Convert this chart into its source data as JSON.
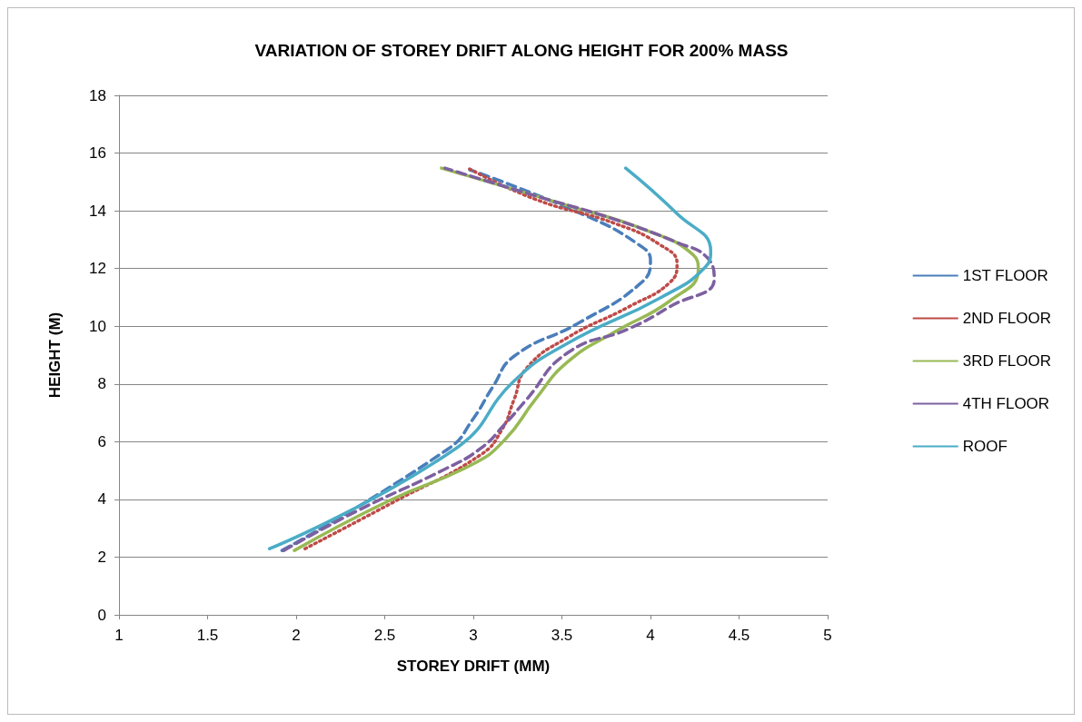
{
  "chart_data": {
    "type": "line",
    "title": "VARIATION OF STOREY DRIFT ALONG HEIGHT FOR 200% MASS",
    "xlabel": "STOREY DRIFT (MM)",
    "ylabel": "HEIGHT (M)",
    "xlim": [
      1,
      5
    ],
    "xticks": [
      1,
      1.5,
      2,
      2.5,
      3,
      3.5,
      4,
      4.5,
      5
    ],
    "ylim": [
      0,
      18
    ],
    "yticks": [
      0,
      2,
      4,
      6,
      8,
      10,
      12,
      14,
      16,
      18
    ],
    "grid": "y",
    "legend": "right",
    "marker": "none",
    "series": [
      {
        "name": "1ST FLOOR",
        "color": "#4a7ebb",
        "line_style": "dashed",
        "x": [
          1.92,
          2.86,
          3.0,
          3.11,
          3.23,
          3.6,
          3.95,
          4.0,
          3.94,
          3.62,
          2.98
        ],
        "values": [
          2.23,
          5.76,
          6.8,
          7.9,
          8.96,
          10.13,
          11.52,
          12.27,
          12.8,
          13.87,
          15.42
        ]
      },
      {
        "name": "2ND FLOOR",
        "color": "#be4b48",
        "line_style": "dotted",
        "x": [
          2.05,
          2.56,
          3.04,
          3.16,
          3.23,
          3.3,
          3.53,
          3.88,
          4.11,
          4.15,
          4.06,
          3.8,
          3.35,
          2.97
        ],
        "values": [
          2.29,
          3.94,
          5.54,
          6.4,
          7.46,
          8.54,
          9.6,
          10.68,
          11.52,
          12.17,
          12.8,
          13.56,
          14.4,
          15.48
        ]
      },
      {
        "name": "3RD FLOOR",
        "color": "#98b954",
        "line_style": "solid",
        "x": [
          1.99,
          2.52,
          3.0,
          3.18,
          3.35,
          3.53,
          3.8,
          4.11,
          4.27,
          4.24,
          3.97,
          3.53,
          2.82
        ],
        "values": [
          2.23,
          3.94,
          5.23,
          6.08,
          7.46,
          8.75,
          9.81,
          10.88,
          11.95,
          12.48,
          13.34,
          14.19,
          15.48
        ]
      },
      {
        "name": "4TH FLOOR",
        "color": "#7d60a0",
        "line_style": "dashed",
        "x": [
          1.93,
          2.35,
          2.83,
          3.04,
          3.18,
          3.3,
          3.53,
          3.88,
          4.11,
          4.36,
          4.32,
          4.15,
          3.8,
          3.35,
          2.84
        ],
        "values": [
          2.23,
          3.62,
          5.02,
          5.76,
          6.62,
          7.46,
          9.07,
          9.92,
          10.68,
          11.64,
          12.38,
          12.9,
          13.7,
          14.52,
          15.48
        ]
      },
      {
        "name": "ROOF",
        "color": "#4bacc6",
        "line_style": "solid",
        "x": [
          1.85,
          2.9,
          3.23,
          3.53,
          4.06,
          4.31,
          4.34,
          4.15,
          3.86
        ],
        "values": [
          2.29,
          5.76,
          8.1,
          9.4,
          11.0,
          12.05,
          12.6,
          13.9,
          15.48
        ]
      }
    ]
  }
}
